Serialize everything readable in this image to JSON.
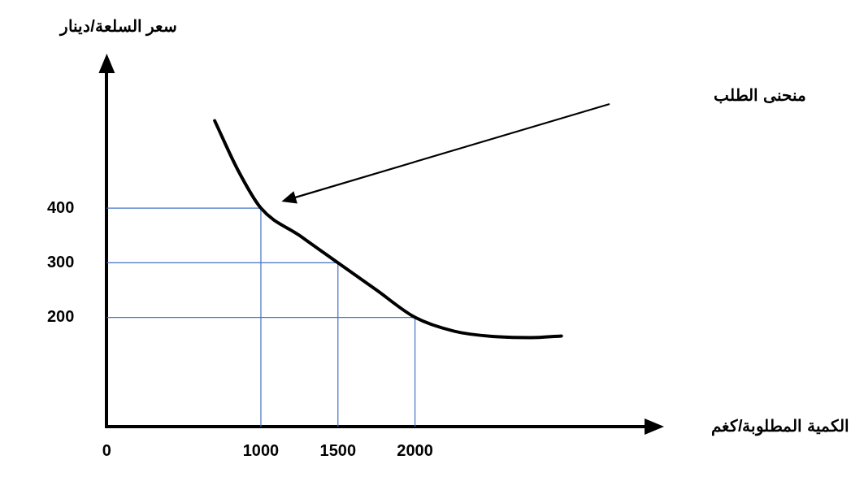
{
  "chart_data": {
    "type": "line",
    "xlabel": "الكمية المطلوبة/كغم",
    "ylabel": "سعر السلعة/دينار",
    "annotations": [
      "منحنى الطلب"
    ],
    "series": [
      {
        "color": "#000000",
        "x": [
          700,
          850,
          1000,
          1250,
          1500,
          1750,
          2000,
          2250,
          2500,
          2750,
          2950
        ],
        "values": [
          560,
          470,
          400,
          350,
          300,
          250,
          200,
          175,
          165,
          163,
          166
        ]
      },
      {
        "color": "#4472c4",
        "x": [
          0,
          1000
        ],
        "values": [
          400,
          400
        ]
      },
      {
        "color": "#4472c4",
        "x": [
          1000,
          1000
        ],
        "values": [
          0,
          400
        ]
      },
      {
        "color": "#4472c4",
        "x": [
          0,
          1500
        ],
        "values": [
          300,
          300
        ]
      },
      {
        "color": "#4472c4",
        "x": [
          1500,
          1500
        ],
        "values": [
          0,
          300
        ]
      },
      {
        "color": "#4472c4",
        "x": [
          0,
          2000
        ],
        "values": [
          200,
          200
        ]
      },
      {
        "color": "#4472c4",
        "x": [
          2000,
          2000
        ],
        "values": [
          0,
          200
        ]
      }
    ],
    "xlim": [
      0,
      3500
    ],
    "ylim": [
      0,
      650
    ],
    "xticks": [
      0,
      1000,
      1500,
      2000
    ],
    "yticks": [
      200,
      300,
      400
    ],
    "grid": false,
    "legend": false,
    "marker": "none",
    "line_style": "solid"
  }
}
